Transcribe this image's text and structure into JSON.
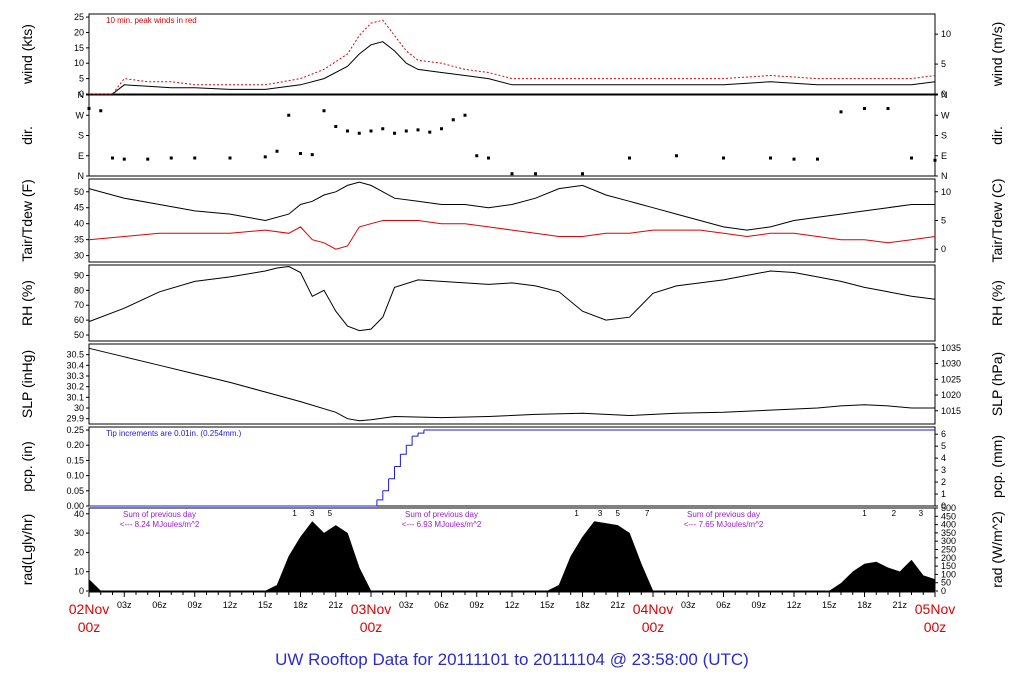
{
  "footer": "UW Rooftop Data for 20111101  to  20111104 @ 23:58:00  (UTC)",
  "colors": {
    "red": "#e00000",
    "blue": "#1a1ae6",
    "purple": "#9a1ad2",
    "footer": "#2a2ad6"
  },
  "chart_data": [
    {
      "type": "line",
      "key": "wind",
      "ylabel_left": "wind (kts)",
      "ylabel_right": "wind (m/s)",
      "ylim": [
        0,
        26
      ],
      "yticks": [
        0,
        5,
        10,
        15,
        20,
        25
      ],
      "right_ylim": [
        0,
        13.37
      ],
      "right_yticks": [
        0,
        5,
        10
      ],
      "annotation": "10 min. peak winds in red",
      "x": [
        0,
        2,
        3,
        5,
        7,
        9,
        12,
        15,
        18,
        20,
        22,
        23,
        24,
        25,
        26,
        27,
        28,
        30,
        32,
        34,
        36,
        38,
        42,
        46,
        50,
        54,
        58,
        62,
        66,
        68,
        70,
        72
      ],
      "series": [
        {
          "name": "wind",
          "values": [
            0,
            0,
            3,
            2.5,
            2,
            2,
            1.5,
            1.5,
            3,
            5,
            9,
            13,
            16,
            17,
            14,
            10,
            8,
            7,
            6,
            5,
            3,
            3,
            3,
            3,
            3,
            3,
            4,
            3,
            3,
            3,
            3,
            4
          ]
        },
        {
          "name": "peak",
          "values": [
            0,
            0,
            5,
            4,
            4,
            3,
            3,
            3,
            5,
            8,
            13,
            19,
            23,
            24,
            19,
            14,
            11,
            10,
            8,
            7,
            5,
            5,
            5,
            5,
            5,
            5,
            6,
            5,
            5,
            5,
            5,
            6
          ]
        }
      ]
    },
    {
      "type": "scatter",
      "key": "dir",
      "ylabel_left": "dir.",
      "ylabel_right": "dir.",
      "ylim": [
        0,
        360
      ],
      "ytick_labels": [
        "N",
        "E",
        "S",
        "W",
        "N"
      ],
      "x": [
        0,
        1,
        2,
        3,
        5,
        7,
        9,
        12,
        15,
        16,
        17,
        18,
        19,
        20,
        21,
        22,
        23,
        24,
        25,
        26,
        27,
        28,
        29,
        30,
        31,
        32,
        33,
        34,
        36,
        38,
        42,
        46,
        50,
        54,
        58,
        60,
        62,
        64,
        66,
        68,
        70,
        72
      ],
      "values": [
        300,
        290,
        80,
        75,
        75,
        80,
        80,
        80,
        85,
        110,
        270,
        100,
        95,
        290,
        220,
        200,
        190,
        200,
        210,
        190,
        200,
        205,
        195,
        210,
        250,
        270,
        90,
        80,
        10,
        10,
        10,
        80,
        90,
        80,
        80,
        75,
        75,
        285,
        300,
        300,
        80,
        70
      ]
    },
    {
      "type": "line",
      "key": "temp",
      "ylabel_left": "Tair/Tdew (F)",
      "ylabel_right": "Tair/Tdew (C)",
      "ylim": [
        28,
        54
      ],
      "yticks": [
        30,
        35,
        40,
        45,
        50
      ],
      "right_ylim": [
        -2.22,
        12.22
      ],
      "right_yticks": [
        0,
        5,
        10
      ],
      "x": [
        0,
        3,
        6,
        9,
        12,
        15,
        17,
        18,
        19,
        20,
        21,
        22,
        23,
        24,
        25,
        26,
        28,
        30,
        32,
        34,
        36,
        38,
        40,
        42,
        44,
        46,
        48,
        50,
        52,
        54,
        56,
        58,
        60,
        62,
        64,
        66,
        68,
        70,
        72
      ],
      "series": [
        {
          "name": "Tair",
          "values": [
            51,
            48,
            46,
            44,
            43,
            41,
            43,
            46,
            47,
            49,
            50,
            52,
            53,
            52,
            50,
            48,
            47,
            46,
            46,
            45,
            46,
            48,
            51,
            52,
            49,
            47,
            45,
            43,
            41,
            39,
            38,
            39,
            41,
            42,
            43,
            44,
            45,
            46,
            46
          ]
        },
        {
          "name": "Tdew",
          "values": [
            35,
            36,
            37,
            37,
            37,
            38,
            37,
            39,
            35,
            34,
            32,
            33,
            39,
            40,
            41,
            41,
            41,
            40,
            40,
            39,
            38,
            37,
            36,
            36,
            37,
            37,
            38,
            38,
            38,
            37,
            36,
            37,
            37,
            36,
            35,
            35,
            34,
            35,
            36
          ]
        }
      ]
    },
    {
      "type": "line",
      "key": "rh",
      "ylabel_left": "RH (%)",
      "ylabel_right": "RH (%)",
      "ylim": [
        46,
        97
      ],
      "yticks": [
        50,
        60,
        70,
        80,
        90
      ],
      "x": [
        0,
        3,
        6,
        9,
        12,
        15,
        16,
        17,
        18,
        19,
        20,
        21,
        22,
        23,
        24,
        25,
        26,
        28,
        30,
        32,
        34,
        36,
        38,
        40,
        42,
        44,
        46,
        48,
        50,
        52,
        54,
        56,
        58,
        60,
        62,
        64,
        66,
        68,
        70,
        72
      ],
      "series": [
        {
          "name": "RH",
          "values": [
            59,
            68,
            79,
            86,
            89,
            93,
            95,
            96,
            92,
            76,
            80,
            66,
            56,
            53,
            54,
            62,
            82,
            87,
            86,
            85,
            84,
            85,
            83,
            79,
            66,
            60,
            62,
            78,
            83,
            85,
            87,
            90,
            93,
            92,
            89,
            86,
            82,
            79,
            76,
            74
          ]
        }
      ]
    },
    {
      "type": "line",
      "key": "slp",
      "ylabel_left": "SLP (inHg)",
      "ylabel_right": "SLP (hPa)",
      "ylim": [
        29.85,
        30.6
      ],
      "yticks": [
        29.9,
        30.0,
        30.1,
        30.2,
        30.3,
        30.4,
        30.5
      ],
      "right_ylim": [
        1010.8,
        1036.2
      ],
      "right_yticks": [
        1015,
        1020,
        1025,
        1030,
        1035
      ],
      "x": [
        0,
        3,
        6,
        9,
        12,
        15,
        18,
        21,
        22,
        23,
        24,
        26,
        30,
        34,
        38,
        42,
        46,
        50,
        54,
        58,
        62,
        64,
        66,
        68,
        70,
        72
      ],
      "series": [
        {
          "name": "SLP",
          "values": [
            30.56,
            30.48,
            30.4,
            30.32,
            30.24,
            30.15,
            30.06,
            29.96,
            29.9,
            29.88,
            29.89,
            29.92,
            29.91,
            29.92,
            29.94,
            29.95,
            29.93,
            29.95,
            29.96,
            29.98,
            30.0,
            30.02,
            30.03,
            30.02,
            30.0,
            30.0
          ]
        }
      ]
    },
    {
      "type": "line",
      "key": "pcp",
      "ylabel_left": "pcp. (in)",
      "ylabel_right": "pcp. (mm)",
      "ylim": [
        0,
        0.26
      ],
      "yticks": [
        0.0,
        0.05,
        0.1,
        0.15,
        0.2,
        0.25
      ],
      "yticks_text": [
        "0.00",
        "0.05",
        "0.10",
        "0.15",
        "0.20",
        "0.25"
      ],
      "right_ylim": [
        0,
        6.604
      ],
      "right_yticks": [
        0,
        1,
        2,
        3,
        4,
        5,
        6
      ],
      "annotation": "Tip increments are 0.01in. (0.254mm.)",
      "x": [
        0,
        24,
        24.5,
        25,
        25.5,
        26,
        26.5,
        27,
        27.5,
        28,
        28.5,
        29,
        72
      ],
      "series": [
        {
          "name": "precip",
          "values": [
            0,
            0,
            0.02,
            0.05,
            0.09,
            0.13,
            0.17,
            0.2,
            0.23,
            0.24,
            0.25,
            0.25,
            0.25
          ]
        }
      ]
    },
    {
      "type": "area",
      "key": "rad",
      "ylabel_left": "rad(Lgly/hr)",
      "ylabel_right": "rad (W/m^2)",
      "ylim": [
        0,
        43
      ],
      "yticks": [
        0,
        10,
        20,
        30,
        40
      ],
      "right_ylim": [
        0,
        500
      ],
      "right_yticks": [
        0,
        50,
        100,
        150,
        200,
        250,
        300,
        350,
        400,
        450,
        500
      ],
      "x": [
        0,
        1,
        15,
        16,
        17,
        18,
        19,
        20,
        21,
        22,
        23,
        24,
        39,
        40,
        41,
        42,
        43,
        44,
        45,
        46,
        47,
        48,
        63,
        64,
        65,
        66,
        67,
        68,
        69,
        70,
        71,
        72
      ],
      "values": [
        6,
        0,
        0,
        3,
        18,
        28,
        36,
        30,
        34,
        30,
        12,
        0,
        0,
        3,
        18,
        28,
        36,
        35,
        34,
        30,
        14,
        0,
        0,
        4,
        10,
        14,
        15,
        12,
        10,
        16,
        8,
        6
      ],
      "peak_markers": [
        {
          "label": "1",
          "x": 17.5
        },
        {
          "label": "3",
          "x": 19
        },
        {
          "label": "5",
          "x": 20.5
        },
        {
          "label": "1",
          "x": 41.5
        },
        {
          "label": "3",
          "x": 43.5
        },
        {
          "label": "5",
          "x": 45
        },
        {
          "label": "7",
          "x": 47.5
        },
        {
          "label": "1",
          "x": 66
        },
        {
          "label": "2",
          "x": 68.5
        },
        {
          "label": "3",
          "x": 70.8
        }
      ],
      "daily_sums": [
        {
          "title": "Sum of previous day",
          "value": "<--- 8.24 MJoules/m^2",
          "x": 6
        },
        {
          "title": "Sum of previous day",
          "value": "<--- 6.93 MJoules/m^2",
          "x": 30
        },
        {
          "title": "Sum of previous day",
          "value": "<--- 7.65 MJoules/m^2",
          "x": 54
        }
      ]
    }
  ],
  "xaxis": {
    "range": [
      0,
      72
    ],
    "hour_ticks": [
      {
        "x": 3,
        "label": "03z"
      },
      {
        "x": 6,
        "label": "06z"
      },
      {
        "x": 9,
        "label": "09z"
      },
      {
        "x": 12,
        "label": "12z"
      },
      {
        "x": 15,
        "label": "15z"
      },
      {
        "x": 18,
        "label": "18z"
      },
      {
        "x": 21,
        "label": "21z"
      },
      {
        "x": 27,
        "label": "03z"
      },
      {
        "x": 30,
        "label": "06z"
      },
      {
        "x": 33,
        "label": "09z"
      },
      {
        "x": 36,
        "label": "12z"
      },
      {
        "x": 39,
        "label": "15z"
      },
      {
        "x": 42,
        "label": "18z"
      },
      {
        "x": 45,
        "label": "21z"
      },
      {
        "x": 51,
        "label": "03z"
      },
      {
        "x": 54,
        "label": "06z"
      },
      {
        "x": 57,
        "label": "09z"
      },
      {
        "x": 60,
        "label": "12z"
      },
      {
        "x": 63,
        "label": "15z"
      },
      {
        "x": 66,
        "label": "18z"
      },
      {
        "x": 69,
        "label": "21z"
      }
    ],
    "day_ticks": [
      {
        "x": 0,
        "label": "02Nov",
        "sub": "00z"
      },
      {
        "x": 24,
        "label": "03Nov",
        "sub": "00z"
      },
      {
        "x": 48,
        "label": "04Nov",
        "sub": "00z"
      },
      {
        "x": 72,
        "label": "05Nov",
        "sub": "00z"
      }
    ]
  }
}
